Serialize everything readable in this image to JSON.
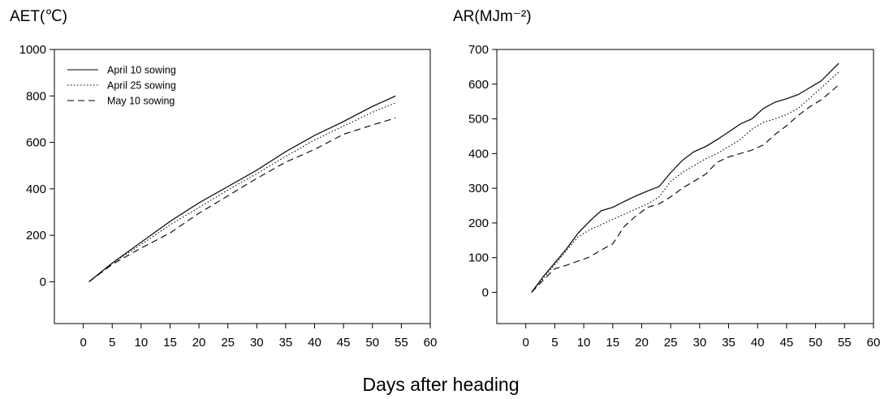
{
  "figure": {
    "shared_xlabel": "Days after heading"
  },
  "chart_data": [
    {
      "type": "line",
      "ylabel": "AET(℃)",
      "xlim": [
        -5,
        60
      ],
      "ylim": [
        -180,
        1000
      ],
      "xticks": [
        0,
        5,
        10,
        15,
        20,
        25,
        30,
        35,
        40,
        45,
        50,
        55,
        60
      ],
      "yticks": [
        0,
        200,
        400,
        600,
        800,
        1000
      ],
      "legend": {
        "position": "top-left"
      },
      "grid": false,
      "series": [
        {
          "name": "April 10 sowing",
          "style": "solid",
          "x": [
            1,
            5,
            10,
            15,
            20,
            25,
            30,
            35,
            40,
            45,
            50,
            54
          ],
          "y": [
            0,
            80,
            170,
            260,
            340,
            410,
            480,
            560,
            630,
            690,
            755,
            800
          ]
        },
        {
          "name": "April 25 sowing",
          "style": "dotted",
          "x": [
            1,
            5,
            10,
            15,
            20,
            25,
            30,
            35,
            40,
            45,
            50,
            54
          ],
          "y": [
            0,
            80,
            160,
            245,
            320,
            395,
            465,
            540,
            610,
            670,
            730,
            770
          ]
        },
        {
          "name": "May 10 sowing",
          "style": "dashed",
          "x": [
            1,
            5,
            10,
            15,
            20,
            25,
            30,
            35,
            40,
            45,
            50,
            54
          ],
          "y": [
            0,
            75,
            145,
            210,
            295,
            370,
            445,
            515,
            570,
            635,
            675,
            705
          ]
        }
      ]
    },
    {
      "type": "line",
      "ylabel": "AR(MJm⁻²)",
      "xlim": [
        -5,
        60
      ],
      "ylim": [
        -90,
        700
      ],
      "xticks": [
        0,
        5,
        10,
        15,
        20,
        25,
        30,
        35,
        40,
        45,
        50,
        55,
        60
      ],
      "yticks": [
        0,
        100,
        200,
        300,
        400,
        500,
        600,
        700
      ],
      "legend": null,
      "grid": false,
      "series": [
        {
          "name": "April 10 sowing",
          "style": "solid",
          "x": [
            1,
            3,
            5,
            7,
            9,
            11,
            13,
            15,
            17,
            19,
            21,
            23,
            25,
            27,
            29,
            31,
            33,
            35,
            37,
            39,
            41,
            43,
            45,
            47,
            49,
            51,
            54
          ],
          "y": [
            0,
            45,
            85,
            125,
            170,
            205,
            235,
            245,
            262,
            278,
            292,
            305,
            345,
            380,
            405,
            420,
            440,
            462,
            485,
            500,
            530,
            548,
            558,
            570,
            590,
            610,
            660
          ]
        },
        {
          "name": "April 25 sowing",
          "style": "dotted",
          "x": [
            1,
            3,
            5,
            7,
            9,
            11,
            13,
            15,
            17,
            19,
            21,
            23,
            25,
            27,
            29,
            31,
            33,
            35,
            37,
            39,
            41,
            43,
            45,
            47,
            49,
            51,
            54
          ],
          "y": [
            0,
            40,
            80,
            120,
            160,
            180,
            195,
            210,
            225,
            240,
            255,
            275,
            320,
            345,
            365,
            385,
            400,
            420,
            440,
            470,
            490,
            500,
            512,
            530,
            560,
            590,
            635
          ]
        },
        {
          "name": "May 10 sowing",
          "style": "dashed",
          "x": [
            1,
            3,
            5,
            7,
            9,
            11,
            13,
            15,
            17,
            19,
            21,
            23,
            25,
            27,
            29,
            31,
            33,
            35,
            37,
            39,
            41,
            43,
            45,
            47,
            49,
            51,
            54
          ],
          "y": [
            0,
            35,
            68,
            78,
            90,
            102,
            122,
            140,
            190,
            220,
            245,
            255,
            275,
            300,
            320,
            340,
            375,
            390,
            400,
            410,
            425,
            455,
            480,
            510,
            535,
            555,
            598
          ]
        }
      ]
    }
  ]
}
